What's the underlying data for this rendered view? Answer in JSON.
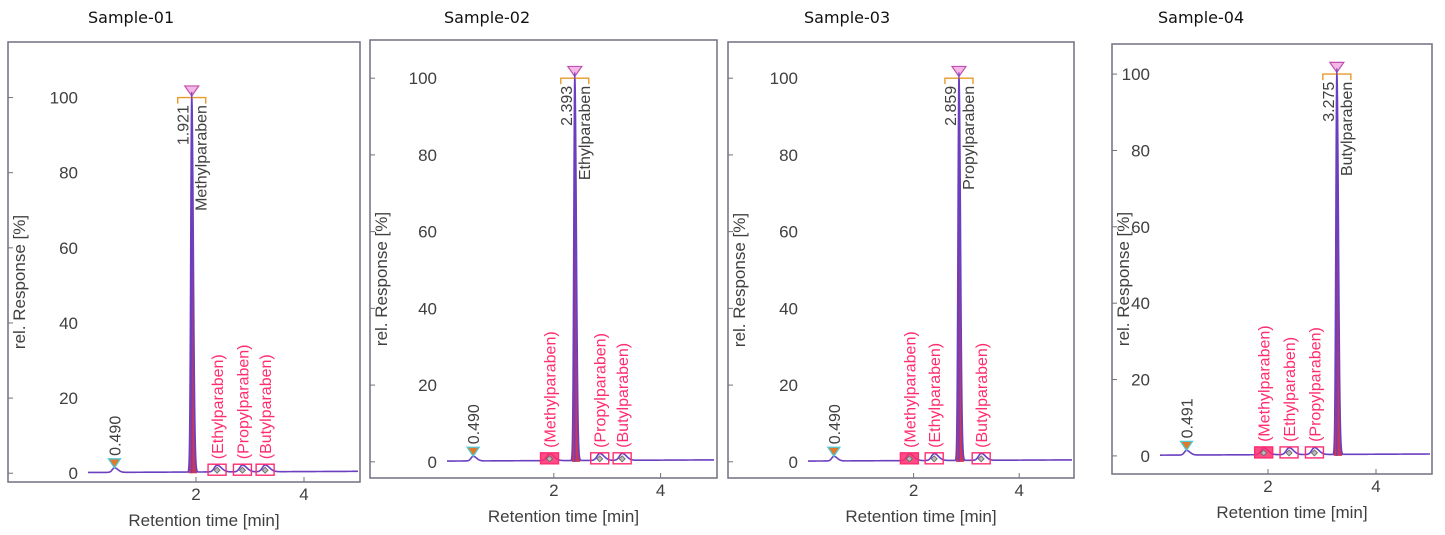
{
  "chart_data": [
    {
      "type": "line",
      "title": "Sample-01",
      "xlabel": "Retention time [min]",
      "ylabel": "rel. Response [%]",
      "xlim": [
        0,
        5
      ],
      "ylim": [
        -5,
        110
      ],
      "xticks": [
        2,
        4
      ],
      "yticks": [
        0,
        20,
        40,
        60,
        80,
        100
      ],
      "void_label": "0.490",
      "void_time": 0.49,
      "peak": {
        "name": "Methylparaben",
        "rt": 1.921,
        "rt_label": "1.921",
        "height": 100
      },
      "unidentified": [
        {
          "name": "(Ethylparaben)",
          "rt": 2.39
        },
        {
          "name": "(Propylparaben)",
          "rt": 2.86
        },
        {
          "name": "(Butylparaben)",
          "rt": 3.28
        }
      ]
    },
    {
      "type": "line",
      "title": "Sample-02",
      "xlabel": "Retention time [min]",
      "ylabel": "rel. Response [%]",
      "xlim": [
        0,
        5
      ],
      "ylim": [
        -5,
        105
      ],
      "xticks": [
        2,
        4
      ],
      "yticks": [
        0,
        20,
        40,
        60,
        80,
        100
      ],
      "void_label": "0.490",
      "void_time": 0.49,
      "peak": {
        "name": "Ethylparaben",
        "rt": 2.393,
        "rt_label": "2.393",
        "height": 100
      },
      "unidentified": [
        {
          "name": "(Methylparaben)",
          "rt": 1.92
        },
        {
          "name": "(Propylparaben)",
          "rt": 2.86
        },
        {
          "name": "(Butylparaben)",
          "rt": 3.28
        }
      ]
    },
    {
      "type": "line",
      "title": "Sample-03",
      "xlabel": "Retention time [min]",
      "ylabel": "rel. Response [%]",
      "xlim": [
        0,
        5
      ],
      "ylim": [
        -5,
        105
      ],
      "xticks": [
        2,
        4
      ],
      "yticks": [
        0,
        20,
        40,
        60,
        80,
        100
      ],
      "void_label": "0.490",
      "void_time": 0.49,
      "peak": {
        "name": "Propylparaben",
        "rt": 2.859,
        "rt_label": "2.859",
        "height": 100
      },
      "unidentified": [
        {
          "name": "(Methylparaben)",
          "rt": 1.92
        },
        {
          "name": "(Ethylparaben)",
          "rt": 2.39
        },
        {
          "name": "(Butylparaben)",
          "rt": 3.28
        }
      ]
    },
    {
      "type": "line",
      "title": "Sample-04",
      "xlabel": "Retention time [min]",
      "ylabel": "rel. Response [%]",
      "xlim": [
        0,
        5
      ],
      "ylim": [
        -5,
        105
      ],
      "xticks": [
        2,
        4
      ],
      "yticks": [
        0,
        20,
        40,
        60,
        80,
        100
      ],
      "void_label": "0.491",
      "void_time": 0.491,
      "peak": {
        "name": "Butylparaben",
        "rt": 3.275,
        "rt_label": "3.275",
        "height": 100
      },
      "unidentified": [
        {
          "name": "(Methylparaben)",
          "rt": 1.92
        },
        {
          "name": "(Ethylparaben)",
          "rt": 2.39
        },
        {
          "name": "(Propylparaben)",
          "rt": 2.86
        }
      ]
    }
  ],
  "colors": {
    "trace": "#6a3fc0",
    "peak_fill": "#c0143c",
    "unidentified": "#ff2d6f",
    "frame": "#707080",
    "text": "#404040",
    "marker_start": "#4fc8d8",
    "marker_end": "#e07a2a",
    "apex_marker": "#c050b0",
    "bracket": "#e89a2a"
  }
}
